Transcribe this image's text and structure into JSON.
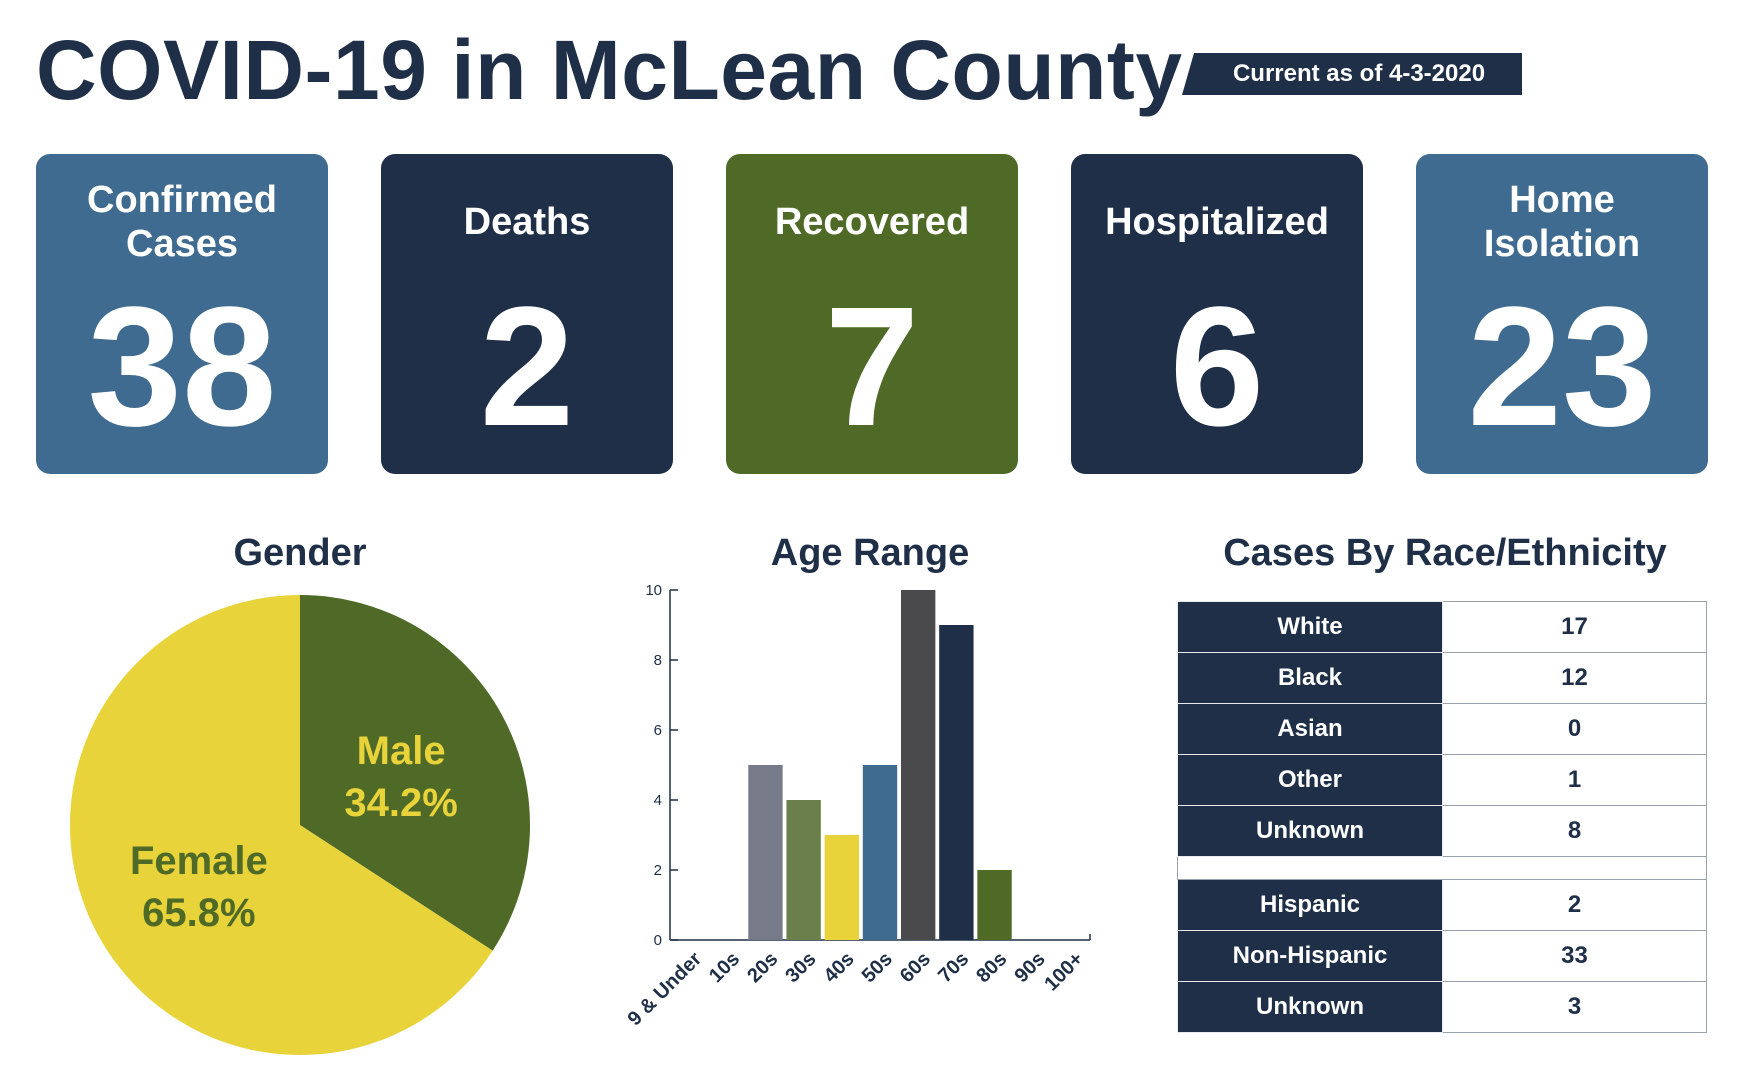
{
  "header": {
    "title": "COVID-19 in McLean County",
    "as_of": "Current as of 4-3-2020"
  },
  "stats": [
    {
      "label": "Confirmed Cases",
      "value": "38",
      "color": "#3e6b8f"
    },
    {
      "label": "Deaths",
      "value": "2",
      "color": "#1e2f47"
    },
    {
      "label": "Recovered",
      "value": "7",
      "color": "#4e6a26"
    },
    {
      "label": "Hospitalized",
      "value": "6",
      "color": "#1e2f47"
    },
    {
      "label": "Home Isolation",
      "value": "23",
      "color": "#3e6b8f"
    }
  ],
  "sections": {
    "gender": "Gender",
    "age": "Age Range",
    "race": "Cases By Race/Ethnicity"
  },
  "chart_data": [
    {
      "type": "pie",
      "title": "Gender",
      "slices": [
        {
          "label": "Male",
          "value": 34.2,
          "display": "34.2%",
          "color": "#4e6a26",
          "text_color": "#e8d33a"
        },
        {
          "label": "Female",
          "value": 65.8,
          "display": "65.8%",
          "color": "#e8d33a",
          "text_color": "#4e6a26"
        }
      ]
    },
    {
      "type": "bar",
      "title": "Age Range",
      "categories": [
        "9 & Under",
        "10s",
        "20s",
        "30s",
        "40s",
        "50s",
        "60s",
        "70s",
        "80s",
        "90s",
        "100+"
      ],
      "values": [
        0,
        0,
        5,
        4,
        3,
        5,
        10,
        9,
        2,
        0,
        0
      ],
      "colors": [
        "#777b89",
        "#777b89",
        "#777b89",
        "#6b7f4a",
        "#e8d33a",
        "#3e6b8f",
        "#4a4a4d",
        "#1e2f47",
        "#4e6a26",
        "#777b89",
        "#777b89"
      ],
      "ylim": [
        0,
        10
      ],
      "yticks": [
        0,
        2,
        4,
        6,
        8,
        10
      ],
      "xlabel": "",
      "ylabel": ""
    },
    {
      "type": "table",
      "title": "Cases By Race/Ethnicity",
      "race": [
        {
          "label": "White",
          "value": "17"
        },
        {
          "label": "Black",
          "value": "12"
        },
        {
          "label": "Asian",
          "value": "0"
        },
        {
          "label": "Other",
          "value": "1"
        },
        {
          "label": "Unknown",
          "value": "8"
        }
      ],
      "ethnicity": [
        {
          "label": "Hispanic",
          "value": "2"
        },
        {
          "label": "Non-Hispanic",
          "value": "33"
        },
        {
          "label": "Unknown",
          "value": "3"
        }
      ]
    }
  ]
}
